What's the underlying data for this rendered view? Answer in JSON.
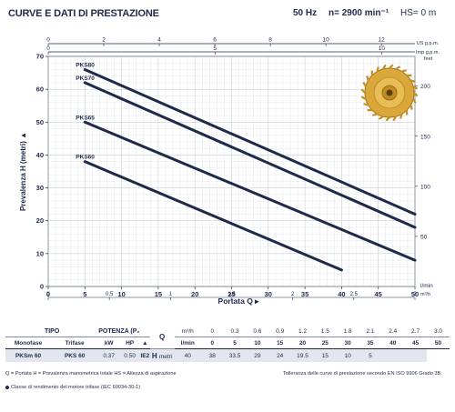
{
  "header": {
    "title": "CURVE E DATI DI PRESTAZIONE",
    "frequency": "50 Hz",
    "speed": "n= 2900 min⁻¹",
    "hs": "HS= 0 m"
  },
  "chart_data": {
    "type": "line",
    "x_label": "Portata Q",
    "y_label": "Prevalenza  H  (metri)",
    "x_unit": "l/min",
    "x_range": [
      0,
      50
    ],
    "x_ticks": [
      0,
      5,
      10,
      15,
      20,
      25,
      30,
      35,
      40,
      45,
      50
    ],
    "y_range": [
      0,
      70
    ],
    "y_ticks": [
      0,
      10,
      20,
      30,
      40,
      50,
      60,
      70
    ],
    "grid": true,
    "series": [
      {
        "name": "PKS80",
        "x": [
          5,
          50
        ],
        "y": [
          66,
          22
        ]
      },
      {
        "name": "PKS70",
        "x": [
          5,
          50
        ],
        "y": [
          62,
          18
        ]
      },
      {
        "name": "PKS65",
        "x": [
          5,
          50
        ],
        "y": [
          50,
          8
        ]
      },
      {
        "name": "PKS60",
        "x": [
          5,
          40
        ],
        "y": [
          38,
          5
        ]
      }
    ],
    "secondary_axes": {
      "us_gpm": {
        "label": "US g.p.m.",
        "ticks": [
          "0",
          "2",
          "4",
          "6",
          "8",
          "10",
          "12"
        ]
      },
      "imp_gpm": {
        "label": "Imp g.p.m.",
        "ticks": [
          "0",
          "5",
          "10"
        ]
      },
      "feet": {
        "label": "feet",
        "ticks": [
          "50",
          "100",
          "150",
          "200"
        ]
      },
      "m3h": {
        "label": "m³/h",
        "ticks": [
          "0",
          "0.5",
          "1",
          "1.5",
          "2",
          "2.5",
          "3"
        ]
      }
    },
    "colors": {
      "line": "#1f2a4a",
      "grid": "#c9cfda",
      "text": "#1f2a4a"
    }
  },
  "table": {
    "tipo": "TIPO",
    "potenza": "POTENZA (P₂)",
    "monofase": "Monofase",
    "trifase": "Trifase",
    "kw": "kW",
    "hp": "HP",
    "q": "Q",
    "m3h": "m³/h",
    "lmin": "l/min",
    "h": "H",
    "metri": "metri",
    "ie": "IE2",
    "flow_m3h": [
      "0",
      "0.3",
      "0.6",
      "0.9",
      "1.2",
      "1.5",
      "1.8",
      "2.1",
      "2.4",
      "2.7",
      "3.0"
    ],
    "flow_lmin": [
      "0",
      "5",
      "10",
      "15",
      "20",
      "25",
      "30",
      "35",
      "40",
      "45",
      "50"
    ],
    "rows": [
      {
        "mono": "PKSm 60",
        "tri": "PKS 60",
        "kw": "0.37",
        "hp": "0.50",
        "h": [
          "40",
          "38",
          "33.5",
          "29",
          "24",
          "19.5",
          "15",
          "10",
          "5",
          "",
          ""
        ]
      }
    ]
  },
  "notes": {
    "legend": "Q = Portata   H = Prevalenza manometrica totale   HS = Altezza di aspirazione",
    "tolerance": "Tolleranza delle curve di prestazione secondo EN ISO 9906 Grado 3B.",
    "class": "Classe di rendimento del motore trifase (IEC 60034-30-1)"
  }
}
